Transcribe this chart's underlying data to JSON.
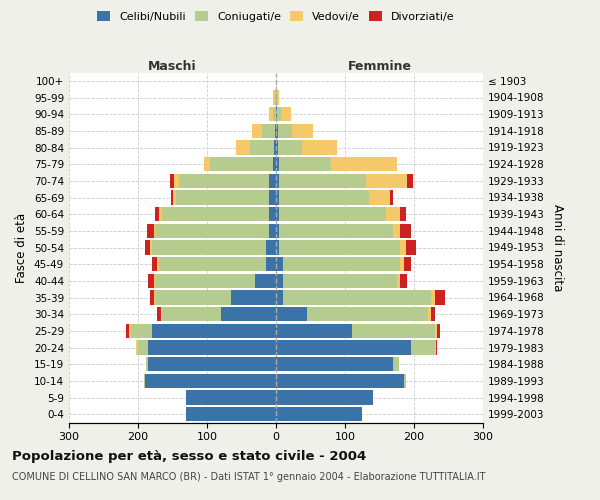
{
  "age_groups": [
    "0-4",
    "5-9",
    "10-14",
    "15-19",
    "20-24",
    "25-29",
    "30-34",
    "35-39",
    "40-44",
    "45-49",
    "50-54",
    "55-59",
    "60-64",
    "65-69",
    "70-74",
    "75-79",
    "80-84",
    "85-89",
    "90-94",
    "95-99",
    "100+"
  ],
  "birth_years": [
    "1999-2003",
    "1994-1998",
    "1989-1993",
    "1984-1988",
    "1979-1983",
    "1974-1978",
    "1969-1973",
    "1964-1968",
    "1959-1963",
    "1954-1958",
    "1949-1953",
    "1944-1948",
    "1939-1943",
    "1934-1938",
    "1929-1933",
    "1924-1928",
    "1919-1923",
    "1914-1918",
    "1909-1913",
    "1904-1908",
    "≤ 1903"
  ],
  "male": {
    "celibi": [
      130,
      130,
      190,
      185,
      185,
      180,
      80,
      65,
      30,
      15,
      15,
      10,
      10,
      10,
      10,
      5,
      3,
      2,
      0,
      0,
      0
    ],
    "coniugati": [
      0,
      0,
      2,
      3,
      15,
      30,
      85,
      110,
      145,
      155,
      165,
      165,
      155,
      135,
      130,
      90,
      35,
      18,
      5,
      2,
      0
    ],
    "vedovi": [
      0,
      0,
      0,
      0,
      3,
      3,
      2,
      2,
      2,
      2,
      2,
      2,
      5,
      5,
      8,
      10,
      20,
      15,
      5,
      2,
      0
    ],
    "divorziati": [
      0,
      0,
      0,
      0,
      0,
      5,
      5,
      5,
      8,
      8,
      8,
      10,
      5,
      2,
      5,
      0,
      0,
      0,
      0,
      0,
      0
    ]
  },
  "female": {
    "nubili": [
      125,
      140,
      185,
      170,
      195,
      110,
      45,
      10,
      10,
      10,
      5,
      5,
      5,
      5,
      5,
      5,
      3,
      3,
      2,
      0,
      0
    ],
    "coniugate": [
      0,
      0,
      3,
      8,
      35,
      120,
      175,
      215,
      165,
      170,
      175,
      165,
      155,
      130,
      125,
      75,
      35,
      20,
      5,
      2,
      0
    ],
    "vedove": [
      0,
      0,
      0,
      0,
      2,
      3,
      5,
      5,
      5,
      5,
      8,
      10,
      20,
      30,
      60,
      95,
      50,
      30,
      15,
      2,
      0
    ],
    "divorziate": [
      0,
      0,
      0,
      0,
      2,
      5,
      5,
      15,
      10,
      10,
      15,
      15,
      8,
      5,
      8,
      0,
      0,
      0,
      0,
      0,
      0
    ]
  },
  "colors": {
    "celibi": "#3b72a8",
    "coniugati": "#b5cc8e",
    "vedovi": "#f5c96a",
    "divorziati": "#cc2222"
  },
  "xlim": 300,
  "title": "Popolazione per età, sesso e stato civile - 2004",
  "subtitle": "COMUNE DI CELLINO SAN MARCO (BR) - Dati ISTAT 1° gennaio 2004 - Elaborazione TUTTITALIA.IT",
  "ylabel_left": "Fasce di età",
  "ylabel_right": "Anni di nascita",
  "xlabel_left": "Maschi",
  "xlabel_right": "Femmine",
  "bg_color": "#f0f0eb",
  "plot_bg": "#ffffff"
}
